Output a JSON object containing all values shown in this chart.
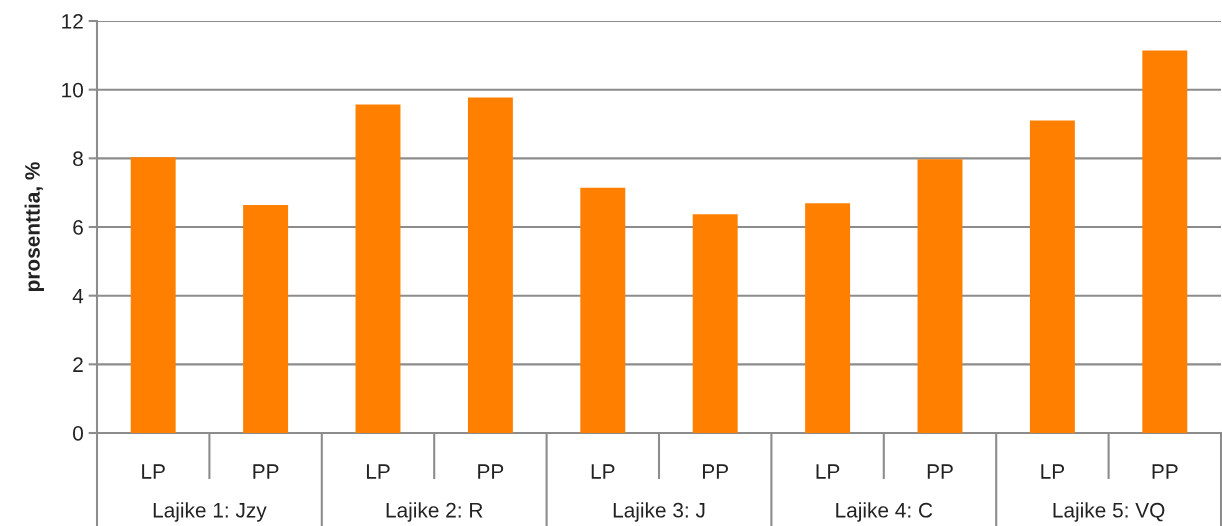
{
  "chart_data": {
    "type": "bar",
    "ylabel": "prosenttia, %",
    "categories": [
      "LP",
      "PP",
      "LP",
      "PP",
      "LP",
      "PP",
      "LP",
      "PP",
      "LP",
      "PP"
    ],
    "values": [
      8.03,
      6.64,
      9.57,
      9.77,
      7.14,
      6.37,
      6.69,
      7.97,
      9.1,
      11.14
    ],
    "color": "#ff8000",
    "annotations": [
      "Lajike 1: Jzy",
      "Lajike 2: R",
      "Lajike 3: J",
      "Lajike 4: C",
      "Lajike 5: VQ"
    ],
    "ylim": [
      0,
      12
    ],
    "yticks": [
      0,
      2,
      4,
      6,
      8,
      10,
      12
    ],
    "grid": "y",
    "legend": false
  }
}
